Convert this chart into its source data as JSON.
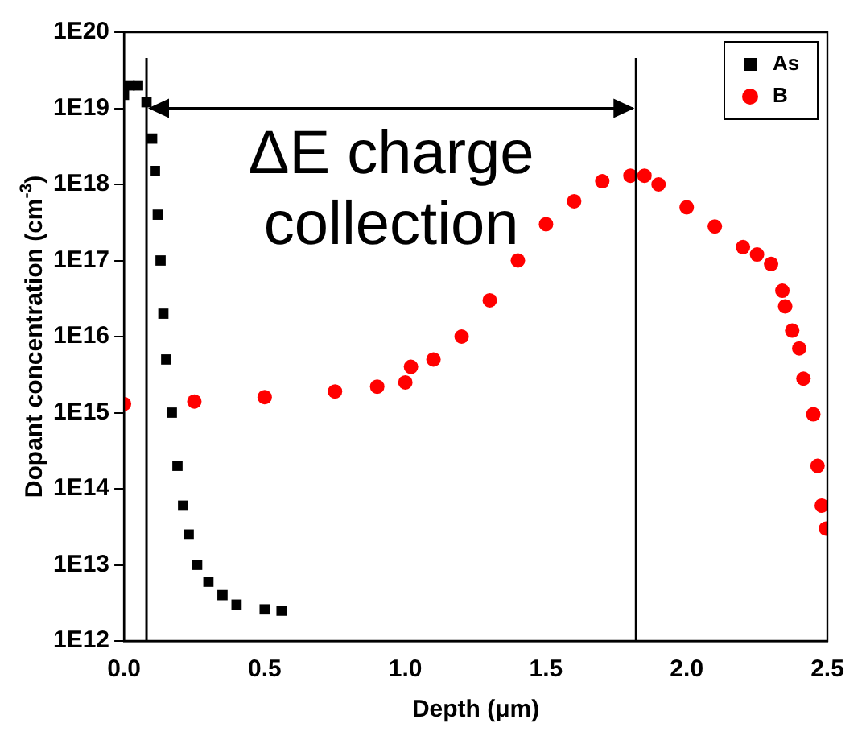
{
  "chart_data": {
    "type": "scatter",
    "xlabel": "Depth (μm)",
    "ylabel": "Dopant concentration (cm$^{-3}$)",
    "log": "y",
    "xlim": [
      0,
      2.5
    ],
    "xticks": [
      {
        "value": 0,
        "label": "0.0"
      },
      0.5,
      {
        "value": 1,
        "label": "1.0"
      },
      1.5,
      {
        "value": 2,
        "label": "2.0"
      },
      2.5
    ],
    "ylim": [
      1000000000000.0,
      1e+20
    ],
    "yticks": [
      {
        "value": 1000000000000.0,
        "label": "1E12"
      },
      {
        "value": 10000000000000.0,
        "label": "1E13"
      },
      {
        "value": 100000000000000.0,
        "label": "1E14"
      },
      {
        "value": 1000000000000000.0,
        "label": "1E15"
      },
      {
        "value": 1e+16,
        "label": "1E16"
      },
      {
        "value": 1e+17,
        "label": "1E17"
      },
      {
        "value": 1e+18,
        "label": "1E18"
      },
      {
        "value": 1e+19,
        "label": "1E19"
      },
      {
        "value": 1e+20,
        "label": "1E20"
      }
    ],
    "legend": "top right",
    "grid": false,
    "annotations": [
      "ΔE charge collection"
    ],
    "ref_lines": [
      {
        "axis": "x",
        "value": 0.08,
        "color": "#000000"
      },
      {
        "axis": "x",
        "value": 1.82,
        "color": "#000000"
      }
    ],
    "series": [
      {
        "name": "As",
        "color": "#000000",
        "marker": "square",
        "x": [
          0,
          0.02,
          0.05,
          0.08,
          0.1,
          0.11,
          0.12,
          0.13,
          0.14,
          0.15,
          0.17,
          0.19,
          0.21,
          0.23,
          0.26,
          0.3,
          0.35,
          0.4,
          0.5,
          0.56
        ],
        "values": [
          1.5e+19,
          2e+19,
          2e+19,
          1.2e+19,
          4e+18,
          1.5e+18,
          4e+17,
          1e+17,
          2e+16,
          5000000000000000.0,
          1000000000000000.0,
          200000000000000.0,
          60000000000000.0,
          25000000000000.0,
          10000000000000.0,
          6000000000000.0,
          4000000000000.0,
          3000000000000.0,
          2600000000000.0,
          2500000000000.0
        ]
      },
      {
        "name": "B",
        "color": "#ff0000",
        "marker": "circle",
        "x": [
          0,
          0.25,
          0.5,
          0.75,
          0.9,
          1.0,
          1.02,
          1.1,
          1.2,
          1.3,
          1.4,
          1.5,
          1.6,
          1.7,
          1.8,
          1.85,
          1.9,
          2.0,
          2.1,
          2.2,
          2.25,
          2.3,
          2.34,
          2.35,
          2.375,
          2.4,
          2.415,
          2.45,
          2.465,
          2.48,
          2.495
        ],
        "values": [
          1300000000000000.0,
          1400000000000000.0,
          1600000000000000.0,
          1900000000000000.0,
          2200000000000000.0,
          2500000000000000.0,
          4000000000000000.0,
          5000000000000000.0,
          1e+16,
          3e+16,
          1e+17,
          3e+17,
          6e+17,
          1.1e+18,
          1.3e+18,
          1.3e+18,
          1e+18,
          5e+17,
          2.8e+17,
          1.5e+17,
          1.2e+17,
          9e+16,
          4e+16,
          2.5e+16,
          1.2e+16,
          7000000000000000.0,
          2800000000000000.0,
          950000000000000.0,
          200000000000000.0,
          60000000000000.0,
          30000000000000.0
        ]
      }
    ]
  }
}
